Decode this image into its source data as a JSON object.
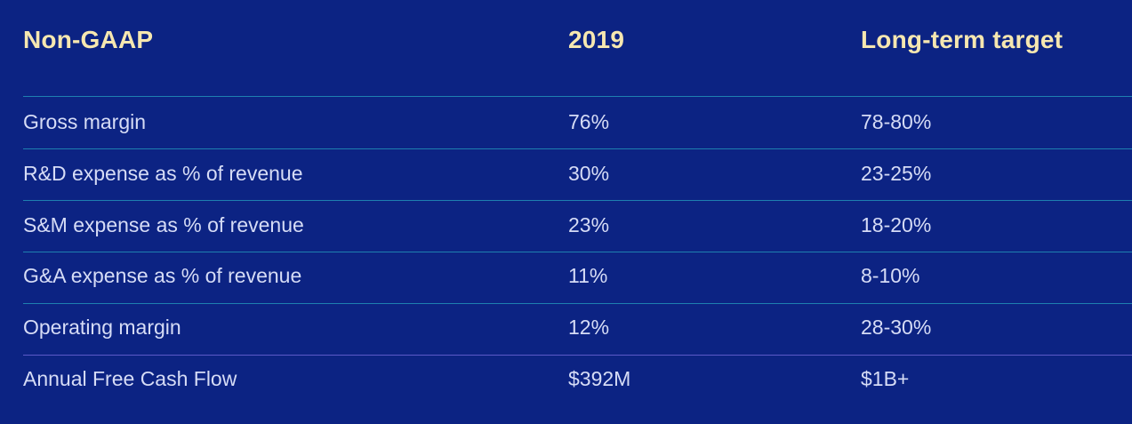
{
  "table": {
    "headers": {
      "metric": "Non-GAAP",
      "year": "2019",
      "target": "Long-term target"
    },
    "rows": [
      {
        "metric": "Gross margin",
        "year": "76%",
        "target": "78-80%"
      },
      {
        "metric": "R&D expense as % of revenue",
        "year": "30%",
        "target": "23-25%"
      },
      {
        "metric": "S&M expense as % of revenue",
        "year": "23%",
        "target": "18-20%"
      },
      {
        "metric": "G&A expense as % of revenue",
        "year": "11%",
        "target": "8-10%"
      },
      {
        "metric": "Operating margin",
        "year": "12%",
        "target": "28-30%"
      },
      {
        "metric": "Annual Free Cash Flow",
        "year": "$392M",
        "target": "$1B+"
      }
    ]
  },
  "colors": {
    "background": "#0c2383",
    "header_text": "#f6e7b0",
    "body_text": "#d6dcf6",
    "rule": "#1e7fb0",
    "rule_last": "#5b59c8"
  }
}
